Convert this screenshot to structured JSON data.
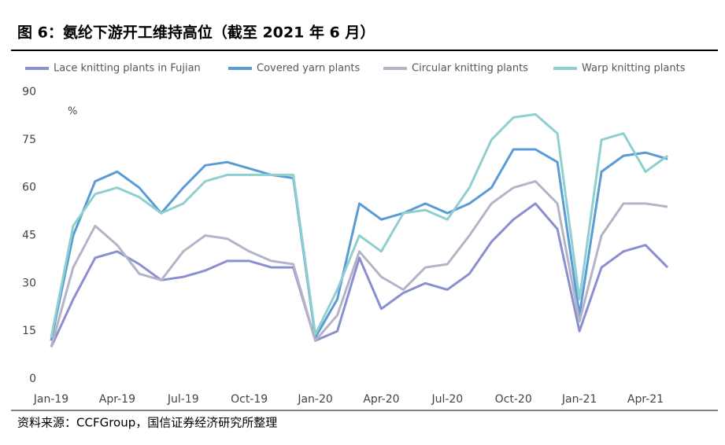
{
  "chart_data": {
    "type": "line",
    "title": "图 6：氨纶下游开工维持高位（截至 2021 年 6 月）",
    "y_unit": "%",
    "source": "资料来源：CCFGroup，国信证券经济研究所整理",
    "x": [
      "Jan-19",
      null,
      null,
      "Apr-19",
      null,
      null,
      "Jul-19",
      null,
      null,
      "Oct-19",
      null,
      null,
      "Jan-20",
      null,
      null,
      "Apr-20",
      null,
      null,
      "Jul-20",
      null,
      null,
      "Oct-20",
      null,
      null,
      "Jan-21",
      null,
      null,
      "Apr-21",
      null
    ],
    "series": [
      {
        "name": "Lace knitting plants in Fujian",
        "color": "#8a8fd0",
        "values": [
          10,
          25,
          38,
          40,
          36,
          31,
          32,
          34,
          37,
          37,
          35,
          35,
          12,
          15,
          38,
          22,
          27,
          30,
          28,
          33,
          43,
          50,
          55,
          47,
          15,
          35,
          40,
          42,
          35
        ]
      },
      {
        "name": "Covered yarn plants",
        "color": "#5b9bd5",
        "values": [
          12,
          45,
          62,
          65,
          60,
          52,
          60,
          67,
          68,
          66,
          64,
          63,
          13,
          25,
          55,
          50,
          52,
          55,
          52,
          55,
          60,
          72,
          72,
          68,
          20,
          65,
          70,
          71,
          69
        ]
      },
      {
        "name": "Circular knitting plants",
        "color": "#b4b4c8",
        "values": [
          10,
          35,
          48,
          42,
          33,
          31,
          40,
          45,
          44,
          40,
          37,
          36,
          12,
          20,
          40,
          32,
          28,
          35,
          36,
          45,
          55,
          60,
          62,
          55,
          18,
          45,
          55,
          55,
          54
        ]
      },
      {
        "name": "Warp knitting plants",
        "color": "#8fcfcf",
        "values": [
          13,
          48,
          58,
          60,
          57,
          52,
          55,
          62,
          64,
          64,
          64,
          64,
          14,
          28,
          45,
          40,
          52,
          53,
          50,
          60,
          75,
          82,
          83,
          77,
          25,
          75,
          77,
          65,
          70
        ]
      }
    ],
    "ylim": [
      0,
      90
    ],
    "yticks": [
      0,
      15,
      30,
      45,
      60,
      75,
      90
    ]
  }
}
